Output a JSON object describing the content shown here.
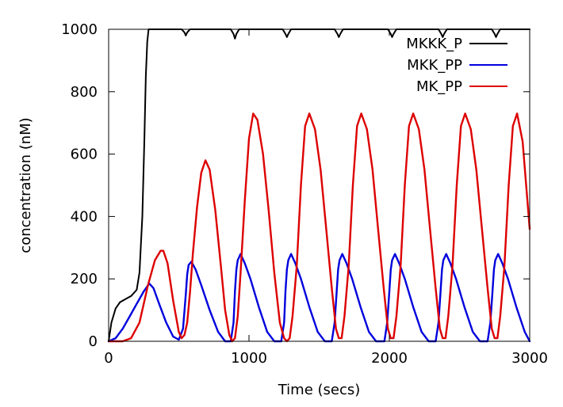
{
  "chart_data": {
    "type": "line",
    "title": "",
    "xlabel": "Time (secs)",
    "ylabel": "concentration (nM)",
    "xlim": [
      0,
      3000
    ],
    "ylim": [
      0,
      1000
    ],
    "xticks": [
      0,
      1000,
      2000,
      3000
    ],
    "yticks": [
      0,
      200,
      400,
      600,
      800,
      1000
    ],
    "grid": false,
    "legend_position": "top-right",
    "series": [
      {
        "name": "MKKK_P",
        "color": "#000000",
        "x": [
          0,
          20,
          50,
          80,
          120,
          160,
          200,
          220,
          240,
          255,
          265,
          275,
          285,
          300,
          520,
          540,
          550,
          560,
          580,
          870,
          890,
          900,
          910,
          930,
          1240,
          1260,
          1270,
          1280,
          1300,
          1610,
          1630,
          1640,
          1650,
          1670,
          1990,
          2010,
          2020,
          2030,
          2050,
          2350,
          2370,
          2380,
          2390,
          2410,
          2730,
          2750,
          2760,
          2770,
          2790,
          3000
        ],
        "y": [
          0,
          60,
          105,
          125,
          135,
          145,
          165,
          220,
          400,
          650,
          850,
          960,
          1000,
          1000,
          1000,
          990,
          980,
          990,
          1000,
          1000,
          985,
          970,
          985,
          1000,
          1000,
          985,
          975,
          985,
          1000,
          1000,
          985,
          975,
          985,
          1000,
          1000,
          985,
          975,
          985,
          1000,
          1000,
          985,
          975,
          985,
          1000,
          1000,
          985,
          975,
          985,
          1000,
          1000
        ]
      },
      {
        "name": "MKK_PP",
        "color": "#0000dd",
        "x": [
          0,
          50,
          100,
          150,
          200,
          250,
          290,
          320,
          360,
          410,
          460,
          500,
          530,
          550,
          560,
          570,
          590,
          620,
          660,
          720,
          780,
          830,
          870,
          890,
          900,
          910,
          920,
          940,
          970,
          1010,
          1070,
          1130,
          1180,
          1230,
          1250,
          1260,
          1270,
          1280,
          1300,
          1330,
          1370,
          1430,
          1490,
          1540,
          1590,
          1610,
          1625,
          1635,
          1645,
          1665,
          1695,
          1735,
          1795,
          1855,
          1905,
          1965,
          1985,
          2000,
          2010,
          2020,
          2040,
          2070,
          2110,
          2170,
          2230,
          2280,
          2330,
          2350,
          2365,
          2375,
          2385,
          2405,
          2435,
          2475,
          2535,
          2595,
          2645,
          2700,
          2720,
          2735,
          2745,
          2755,
          2775,
          2805,
          2845,
          2905,
          2965,
          3000
        ],
        "y": [
          0,
          10,
          40,
          80,
          120,
          160,
          185,
          170,
          120,
          60,
          15,
          5,
          40,
          150,
          215,
          245,
          255,
          230,
          180,
          100,
          30,
          0,
          0,
          60,
          160,
          230,
          260,
          280,
          250,
          200,
          110,
          30,
          0,
          0,
          60,
          160,
          230,
          260,
          280,
          250,
          200,
          110,
          30,
          0,
          0,
          60,
          160,
          230,
          260,
          280,
          250,
          200,
          110,
          30,
          0,
          0,
          60,
          160,
          230,
          260,
          280,
          250,
          200,
          110,
          30,
          0,
          0,
          60,
          160,
          230,
          260,
          280,
          250,
          200,
          110,
          30,
          0,
          0,
          60,
          160,
          230,
          260,
          280,
          250,
          200,
          110,
          30,
          0
        ]
      },
      {
        "name": "MK_PP",
        "color": "#dd0000",
        "x": [
          0,
          100,
          160,
          220,
          280,
          330,
          370,
          390,
          420,
          460,
          500,
          520,
          540,
          560,
          580,
          600,
          630,
          660,
          690,
          720,
          760,
          800,
          830,
          860,
          880,
          900,
          920,
          940,
          970,
          1000,
          1030,
          1060,
          1100,
          1140,
          1180,
          1220,
          1250,
          1270,
          1290,
          1310,
          1340,
          1370,
          1400,
          1430,
          1470,
          1510,
          1550,
          1590,
          1620,
          1640,
          1660,
          1680,
          1710,
          1740,
          1770,
          1800,
          1840,
          1880,
          1920,
          1960,
          1990,
          2010,
          2030,
          2050,
          2080,
          2110,
          2140,
          2170,
          2210,
          2250,
          2290,
          2330,
          2360,
          2380,
          2400,
          2420,
          2450,
          2480,
          2510,
          2540,
          2580,
          2620,
          2660,
          2700,
          2730,
          2750,
          2770,
          2790,
          2820,
          2850,
          2880,
          2910,
          2950,
          3000
        ],
        "y": [
          0,
          0,
          10,
          60,
          180,
          260,
          290,
          290,
          250,
          130,
          30,
          10,
          20,
          60,
          160,
          280,
          430,
          540,
          580,
          550,
          420,
          240,
          100,
          20,
          0,
          10,
          80,
          220,
          450,
          650,
          730,
          710,
          600,
          420,
          220,
          60,
          10,
          0,
          10,
          80,
          240,
          500,
          690,
          730,
          680,
          550,
          360,
          170,
          40,
          10,
          10,
          80,
          240,
          500,
          690,
          730,
          680,
          550,
          360,
          170,
          40,
          10,
          10,
          80,
          240,
          500,
          690,
          730,
          680,
          550,
          360,
          170,
          40,
          10,
          10,
          80,
          240,
          500,
          690,
          730,
          680,
          550,
          360,
          170,
          40,
          10,
          10,
          80,
          240,
          500,
          690,
          730,
          640,
          360
        ]
      }
    ]
  }
}
